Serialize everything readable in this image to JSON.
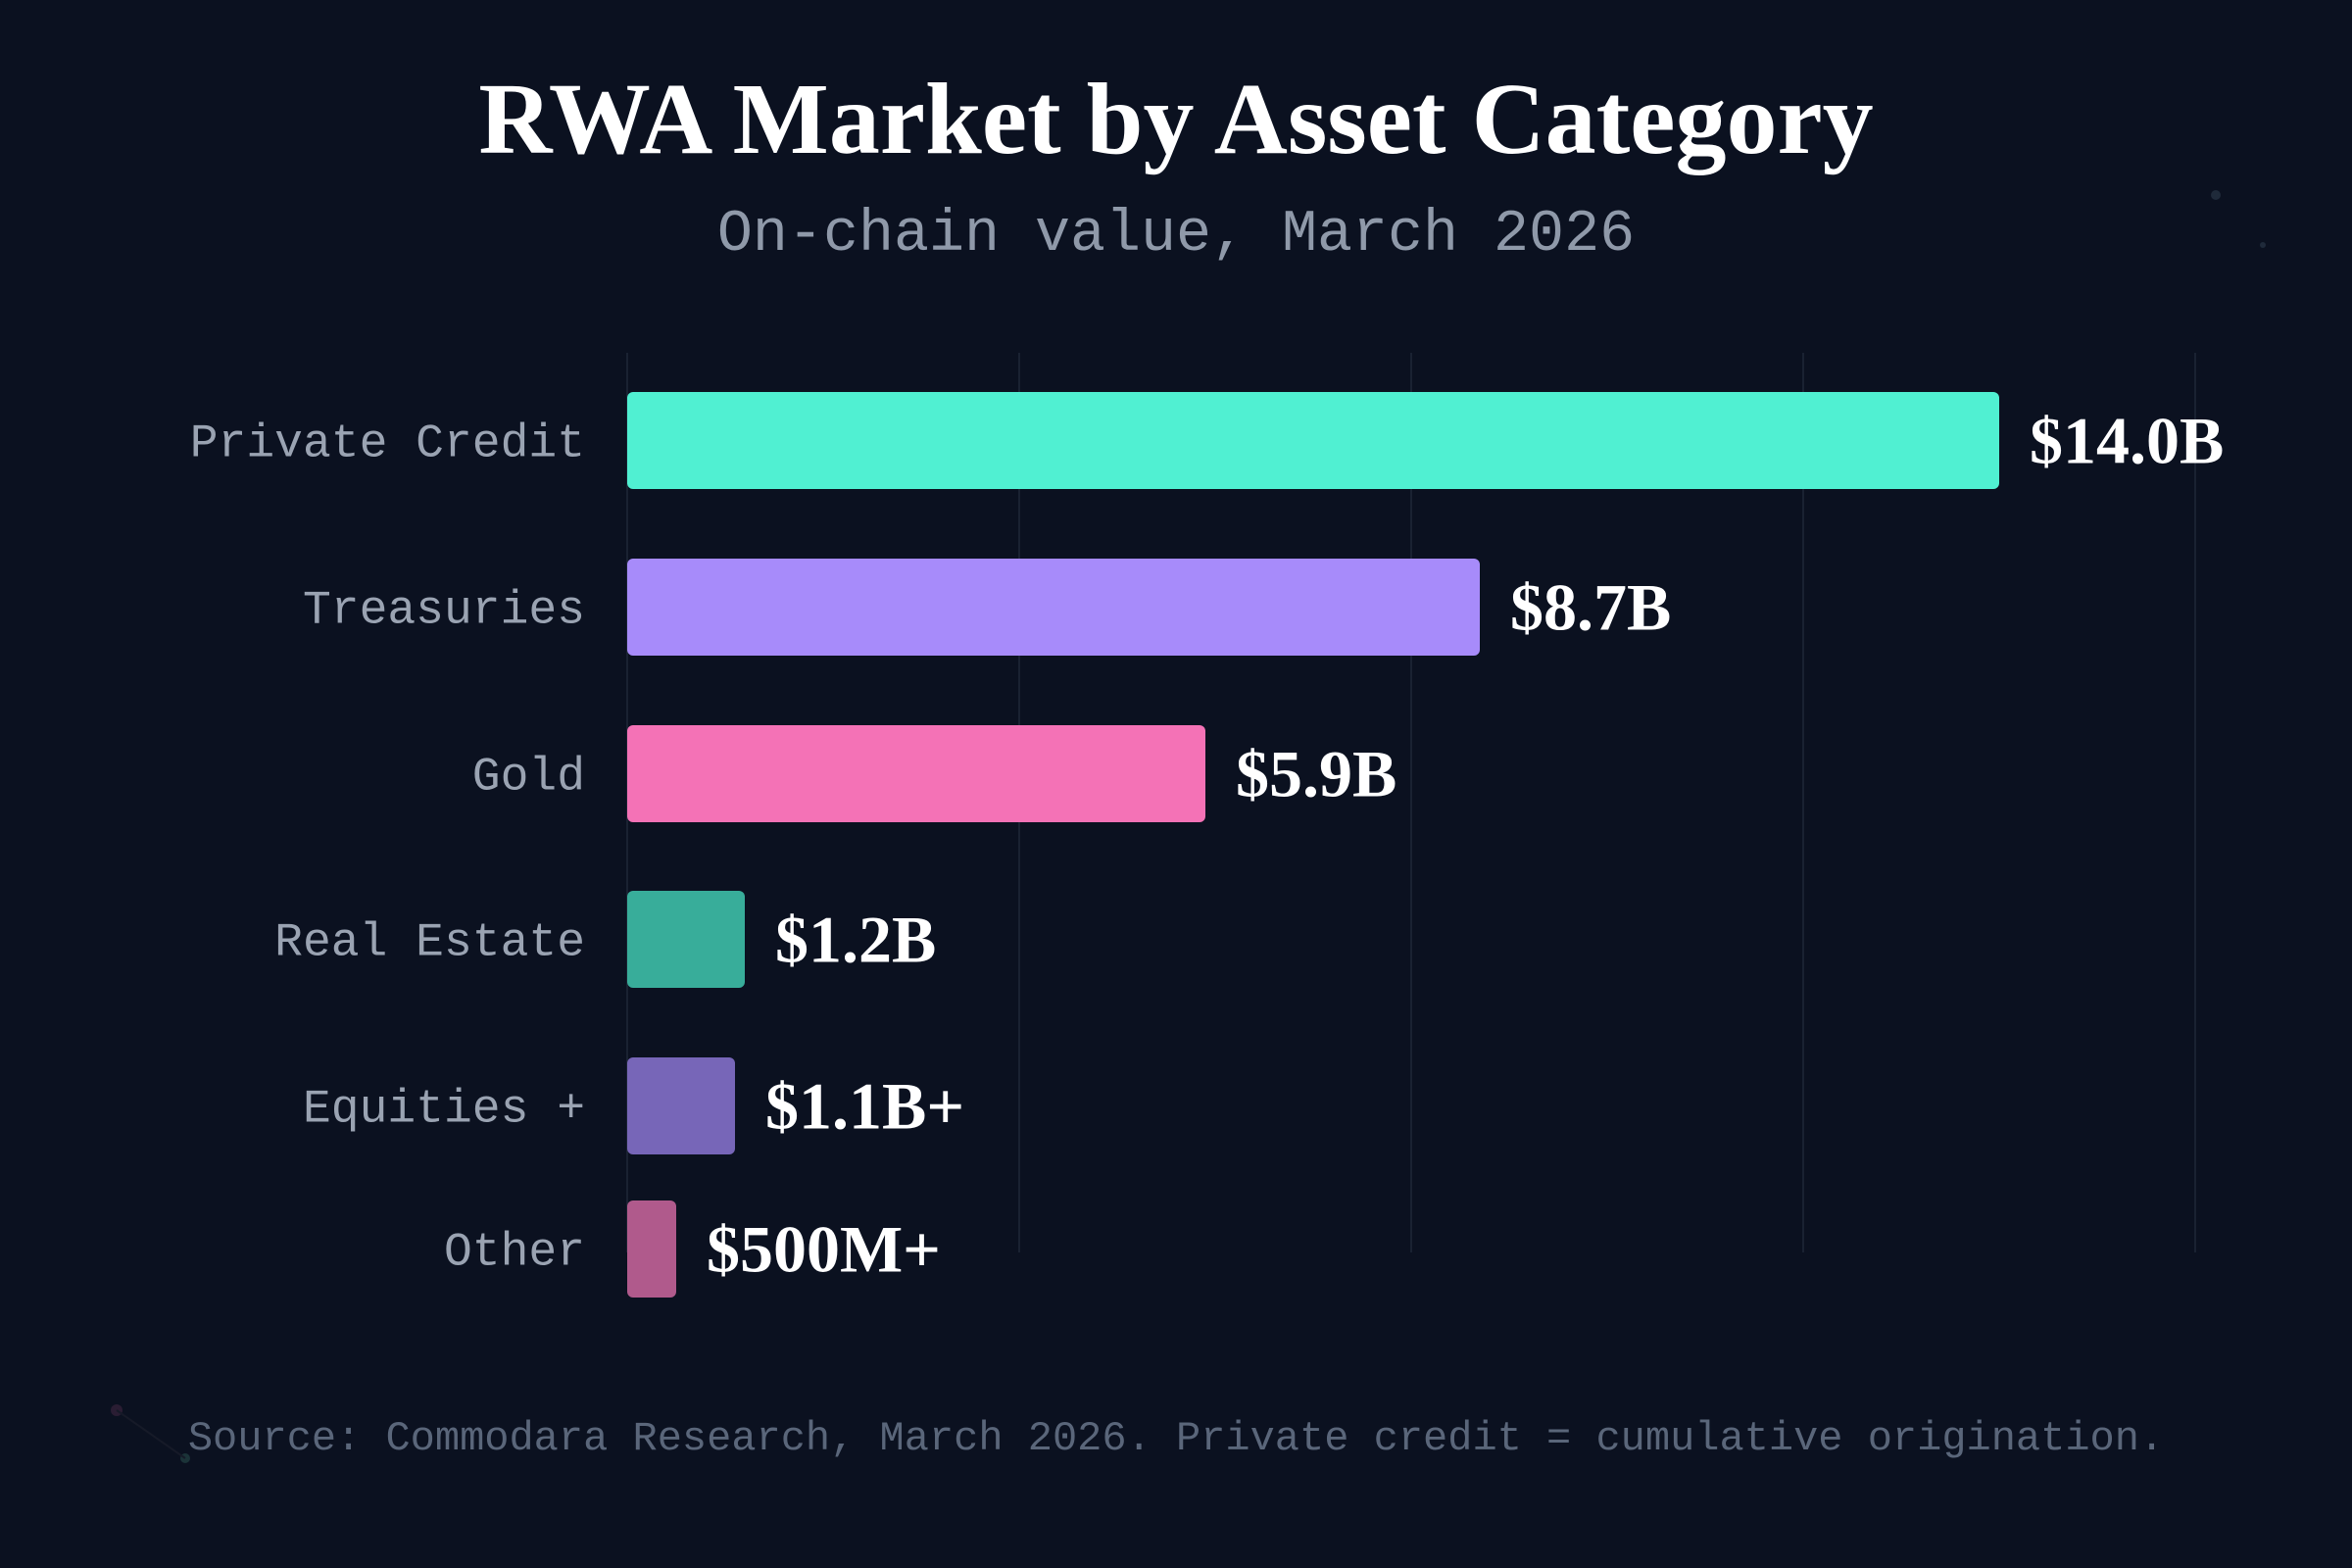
{
  "title": "RWA Market by Asset Category",
  "subtitle": "On-chain value, March 2026",
  "footer": "Source: Commodara Research, March 2026. Private credit = cumulative origination.",
  "chart_data": {
    "type": "bar",
    "orientation": "horizontal",
    "title": "RWA Market by Asset Category",
    "subtitle": "On-chain value, March 2026",
    "xlabel": "",
    "ylabel": "",
    "unit": "USD billions",
    "xlim": [
      0,
      16
    ],
    "grid": true,
    "legend": "none",
    "categories": [
      "Private Credit",
      "Treasuries",
      "Gold",
      "Real Estate",
      "Equities +",
      "Other"
    ],
    "values": [
      14.0,
      8.7,
      5.9,
      1.2,
      1.1,
      0.5
    ],
    "data_labels": [
      "$14.0B",
      "$8.7B",
      "$5.9B",
      "$1.2B",
      "$1.1B+",
      "$500M+"
    ],
    "colors": [
      "#50f0d2",
      "#a78bfa",
      "#f472b6",
      "#38ad9a",
      "#7766b8",
      "#b05a8c"
    ]
  },
  "colors": {
    "background": "#0b1120",
    "gridline": "#1a2232"
  }
}
